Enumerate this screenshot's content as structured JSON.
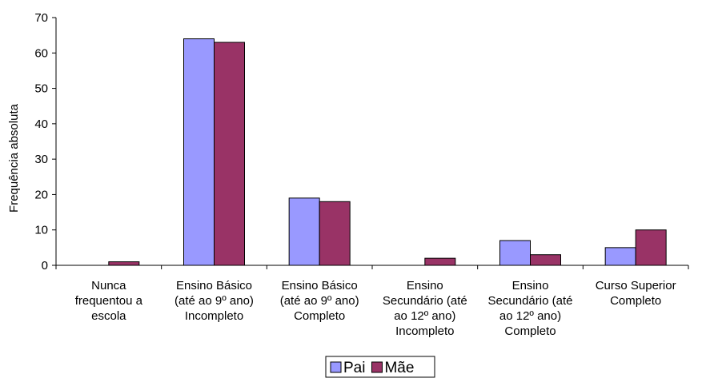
{
  "chart_data": {
    "type": "bar",
    "ylabel": "Frequência absoluta",
    "xlabel": "",
    "ylim": [
      0,
      70
    ],
    "yticks": [
      0,
      10,
      20,
      30,
      40,
      50,
      60,
      70
    ],
    "grid": false,
    "legend_position": "bottom",
    "categories": [
      [
        "Nunca",
        "frequentou a",
        "escola"
      ],
      [
        "Ensino Básico",
        "(até ao 9º ano)",
        "Incompleto"
      ],
      [
        "Ensino Básico",
        "(até ao 9º ano)",
        "Completo"
      ],
      [
        "Ensino",
        "Secundário (até",
        "ao 12º ano)",
        "Incompleto"
      ],
      [
        "Ensino",
        "Secundário (até",
        "ao 12º ano)",
        "Completo"
      ],
      [
        "Curso Superior",
        "Completo"
      ]
    ],
    "series": [
      {
        "name": "Pai",
        "color": "#9999ff",
        "values": [
          0,
          64,
          19,
          0,
          7,
          5
        ]
      },
      {
        "name": "Mãe",
        "color": "#993366",
        "values": [
          1,
          63,
          18,
          2,
          3,
          10
        ]
      }
    ]
  }
}
